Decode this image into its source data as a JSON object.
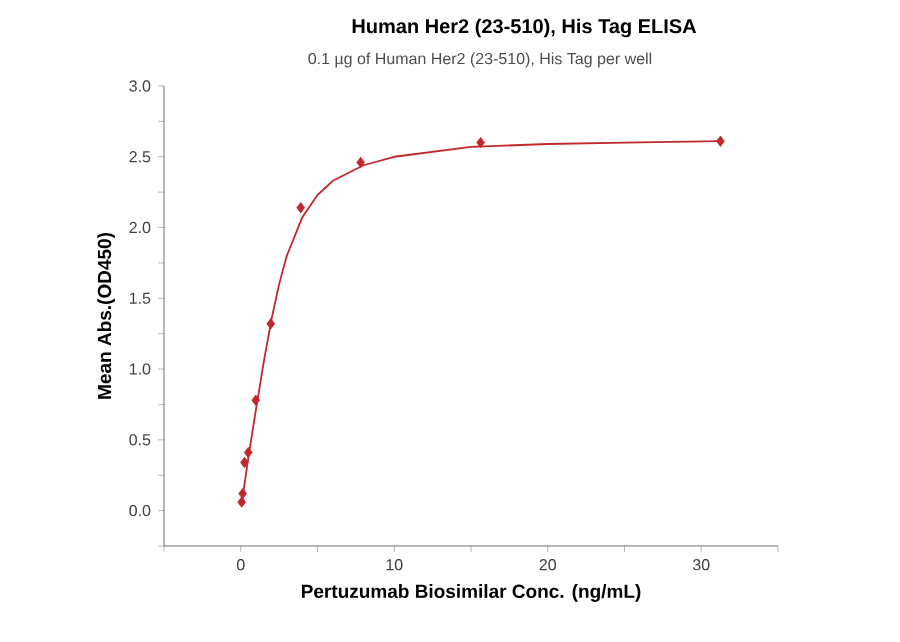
{
  "chart_data": {
    "type": "scatter",
    "title": "Human Her2 (23-510), His Tag ELISA",
    "subtitle": "0.1 µg of Human Her2 (23-510), His Tag per well",
    "xlabel": "Pertuzumab Biosimilar  Conc. (ng/mL)",
    "ylabel": "Mean Abs.(OD450)",
    "xlim": [
      -5,
      35
    ],
    "xticks": [
      {
        "value": -5,
        "label": null
      },
      0,
      {
        "value": 5,
        "label": null
      },
      10,
      {
        "value": 15,
        "label": null
      },
      20,
      {
        "value": 25,
        "label": null
      },
      30,
      {
        "value": 35,
        "label": null
      }
    ],
    "ylim": [
      -0.25,
      3.0
    ],
    "yticks": [
      {
        "value": -0.25,
        "label": null
      },
      {
        "value": 0,
        "label": "0.0"
      },
      {
        "value": 0.25,
        "label": null
      },
      0.5,
      {
        "value": 0.75,
        "label": null
      },
      {
        "value": 1,
        "label": "1.0"
      },
      {
        "value": 1.25,
        "label": null
      },
      1.5,
      {
        "value": 1.75,
        "label": null
      },
      {
        "value": 2,
        "label": "2.0"
      },
      {
        "value": 2.25,
        "label": null
      },
      2.5,
      {
        "value": 2.75,
        "label": null
      },
      {
        "value": 3,
        "label": "3.0"
      }
    ],
    "series": [
      {
        "type": "line",
        "color": "#c0282e",
        "x": [
          0.06,
          0.5,
          1,
          1.5,
          2,
          2.5,
          3,
          4,
          5,
          6,
          8,
          10,
          15,
          20,
          25,
          31.25
        ],
        "values": [
          0.05,
          0.38,
          0.72,
          1.05,
          1.35,
          1.6,
          1.8,
          2.07,
          2.23,
          2.33,
          2.44,
          2.5,
          2.57,
          2.59,
          2.6,
          2.61
        ]
      },
      {
        "marker": "diamond",
        "color": "#c0282e",
        "x": [
          0.061,
          0.122,
          0.244,
          0.488,
          0.977,
          1.953,
          3.906,
          7.8125,
          15.625,
          31.25
        ],
        "values": [
          0.06,
          0.12,
          0.34,
          0.41,
          0.78,
          1.32,
          2.14,
          2.46,
          2.6,
          2.61
        ]
      }
    ]
  }
}
